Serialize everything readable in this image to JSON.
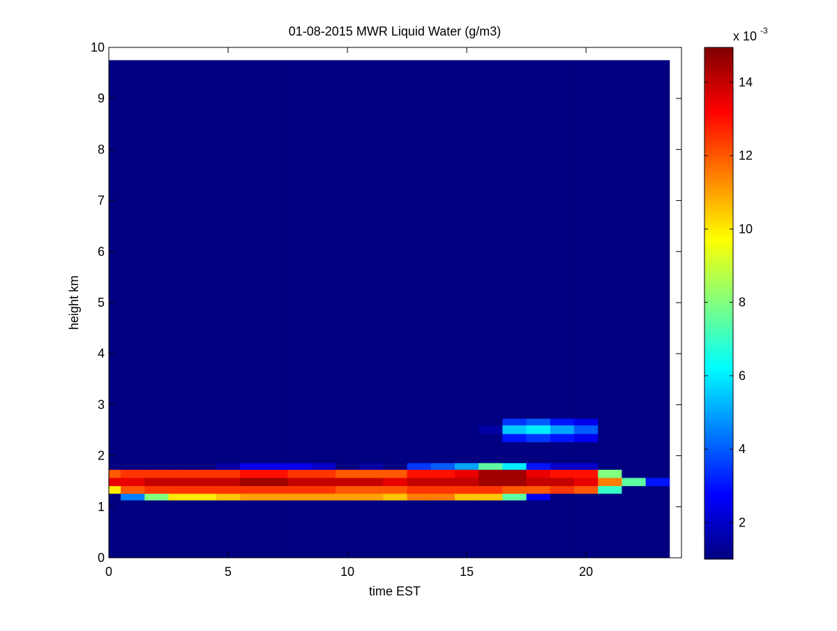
{
  "chart_data": {
    "type": "heatmap",
    "title": "01-08-2015 MWR Liquid Water (g/m3)",
    "x_label": "time EST",
    "y_label": "height km",
    "xlim": [
      0,
      24
    ],
    "ylim": [
      0,
      10
    ],
    "xticks": [
      0,
      5,
      10,
      15,
      20
    ],
    "yticks": [
      0,
      1,
      2,
      3,
      4,
      5,
      6,
      7,
      8,
      9,
      10
    ],
    "x_edges": [
      0,
      0.5,
      1.5,
      2.5,
      3.5,
      4.5,
      5.5,
      6.5,
      7.5,
      8.5,
      9.5,
      10.5,
      11.5,
      12.5,
      13.5,
      14.5,
      15.5,
      16.5,
      17.5,
      18.5,
      19.5,
      20.5,
      21.5,
      22.5,
      23.5
    ],
    "y_edges": [
      0,
      1.13,
      1.26,
      1.41,
      1.57,
      1.73,
      1.86,
      2.27,
      2.43,
      2.6,
      2.73,
      9.75
    ],
    "z": [
      [
        1,
        1,
        1,
        1,
        1,
        1,
        1,
        1,
        1,
        1,
        1,
        1,
        1,
        1,
        1,
        1,
        1,
        1,
        1,
        1,
        1,
        1,
        1,
        1
      ],
      [
        1,
        4.5,
        8,
        10,
        10,
        10.5,
        11,
        11,
        11,
        11,
        11,
        11,
        10.5,
        11.5,
        11.5,
        10.5,
        10.5,
        7.5,
        2.5,
        1,
        1,
        1,
        1,
        1
      ],
      [
        10,
        12,
        12.5,
        12.5,
        12.5,
        12.5,
        12.5,
        12.5,
        12.5,
        12.5,
        12,
        12,
        12,
        12.5,
        12.5,
        12.5,
        12.5,
        12,
        12,
        12.5,
        12,
        7,
        1,
        1
      ],
      [
        13.5,
        13.5,
        14,
        14,
        14,
        14,
        14.5,
        14.5,
        14,
        14,
        14,
        14,
        13.5,
        14,
        14,
        14,
        14.5,
        14.5,
        14,
        14,
        13.5,
        11.5,
        7.5,
        3
      ],
      [
        12,
        12.5,
        12.5,
        12.5,
        12.5,
        12.5,
        13,
        13,
        12.5,
        12.5,
        12,
        12,
        12,
        13,
        13,
        13.5,
        14.5,
        14.5,
        13.5,
        13,
        13,
        8,
        1,
        1
      ],
      [
        1,
        1,
        1,
        1,
        1,
        1.5,
        2.5,
        2.5,
        2.5,
        2,
        1,
        1.5,
        1,
        3.5,
        4,
        5,
        7.5,
        6,
        3,
        2,
        2,
        1,
        1,
        1
      ],
      [
        1,
        1,
        1,
        1,
        1,
        1,
        1,
        1,
        1,
        1,
        1,
        1,
        1,
        1,
        1,
        1,
        1,
        1,
        1,
        1,
        1,
        1,
        1,
        1
      ],
      [
        1,
        1,
        1,
        1,
        1,
        1,
        1,
        1,
        1,
        1,
        1,
        1,
        1,
        1,
        1,
        1,
        1,
        3,
        3.5,
        3,
        2.5,
        1,
        1,
        1
      ],
      [
        1,
        1,
        1,
        1,
        1,
        1,
        1,
        1,
        1,
        1,
        1,
        1,
        1,
        1,
        1,
        1,
        1.5,
        5.5,
        6,
        5,
        4,
        1,
        1,
        1
      ],
      [
        1,
        1,
        1,
        1,
        1,
        1,
        1,
        1,
        1,
        1,
        1,
        1,
        1,
        1,
        1,
        1,
        1,
        3.5,
        4,
        3,
        2.5,
        1,
        1,
        1
      ],
      [
        1,
        1,
        1,
        1,
        1,
        1,
        1,
        1,
        1,
        1,
        1,
        1,
        1,
        1,
        1,
        1,
        1,
        1,
        1,
        1,
        1,
        1,
        1,
        1
      ]
    ],
    "colormap": "jet",
    "clim": [
      1,
      14.95
    ],
    "cticks": [
      2,
      4,
      6,
      8,
      10,
      12,
      14
    ],
    "colorbar_multiplier": "x 10",
    "colorbar_exponent": "-3"
  }
}
